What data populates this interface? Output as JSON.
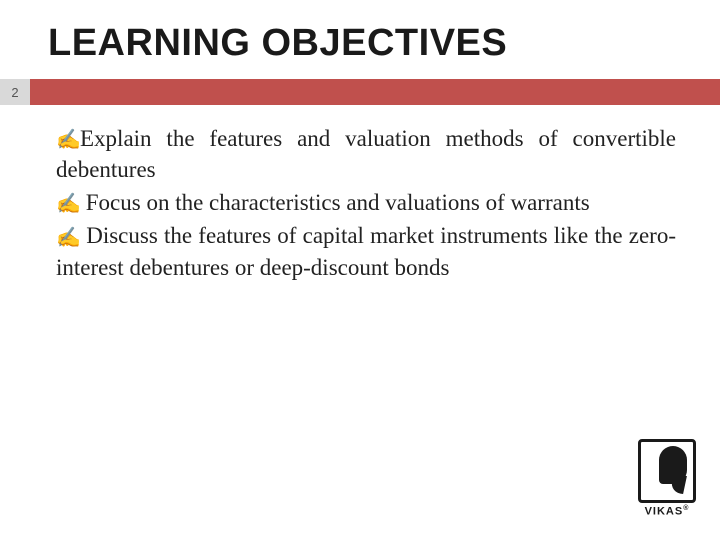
{
  "title": "LEARNING OBJECTIVES",
  "page_number": "2",
  "divider_color": "#c0504d",
  "page_number_bg": "#d9d9d9",
  "bullets": [
    "Explain the features and valuation methods of convertible debentures",
    " Focus on the characteristics and valuations of warrants",
    " Discuss the features of capital market instruments like the zero-interest debentures or deep-discount bonds"
  ],
  "logo": {
    "text": "VIKAS",
    "trademark": "®"
  }
}
